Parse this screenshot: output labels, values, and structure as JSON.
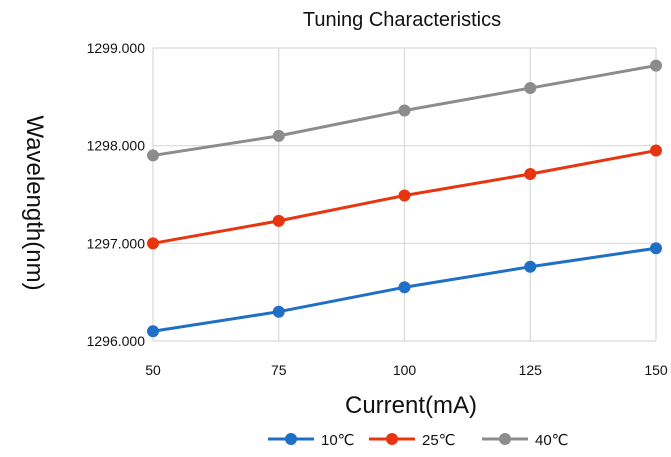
{
  "chart_data": {
    "type": "line",
    "title": "Tuning Characteristics",
    "xlabel": "Current(mA)",
    "ylabel": "Wavelength(nm)",
    "x": [
      50,
      75,
      100,
      125,
      150
    ],
    "x_tick_labels": [
      "50",
      "75",
      "100",
      "125",
      "150"
    ],
    "ylim": [
      1296.0,
      1299.0
    ],
    "y_ticks": [
      1296.0,
      1297.0,
      1298.0,
      1299.0
    ],
    "y_tick_labels": [
      "1296.000",
      "1297.000",
      "1298.000",
      "1299.000"
    ],
    "grid": true,
    "legend_position": "bottom",
    "series": [
      {
        "name": "10℃",
        "color": "#1f6fc5",
        "values": [
          1296.1,
          1296.3,
          1296.55,
          1296.76,
          1296.95
        ]
      },
      {
        "name": "25℃",
        "color": "#e8340f",
        "values": [
          1297.0,
          1297.23,
          1297.49,
          1297.71,
          1297.95
        ]
      },
      {
        "name": "40℃",
        "color": "#8c8c8c",
        "values": [
          1297.9,
          1298.1,
          1298.36,
          1298.59,
          1298.82
        ]
      }
    ]
  }
}
